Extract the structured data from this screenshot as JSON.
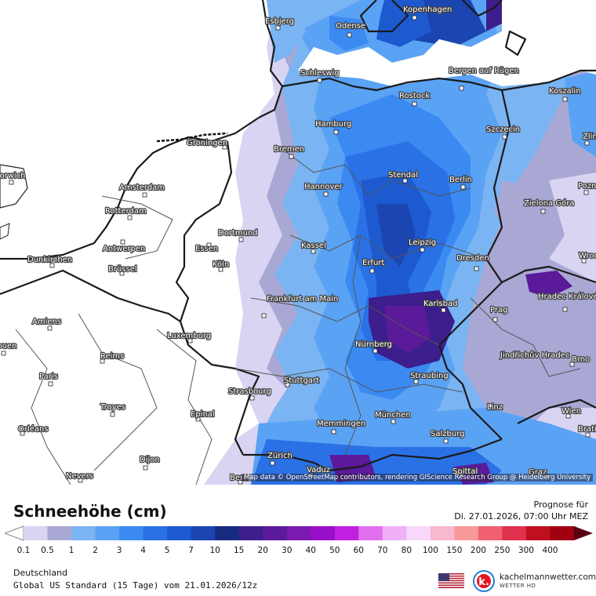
{
  "map": {
    "attribution": "Map data © OpenStreetMap contributors, rendering GIScience Research Group @ Heidelberg University",
    "cities": [
      {
        "name": "Esbjerg"
      },
      {
        "name": "Odense"
      },
      {
        "name": "Kopenhagen"
      },
      {
        "name": "Schleswig"
      },
      {
        "name": "Bergen auf Rügen"
      },
      {
        "name": "Rostock"
      },
      {
        "name": "Koszalin"
      },
      {
        "name": "Hamburg"
      },
      {
        "name": "Szczecin"
      },
      {
        "name": "Bremen"
      },
      {
        "name": "Groningen"
      },
      {
        "name": "Stendal"
      },
      {
        "name": "Berlin"
      },
      {
        "name": "Amsterdam"
      },
      {
        "name": "Hannover"
      },
      {
        "name": "Rotterdam"
      },
      {
        "name": "Zielona Góra"
      },
      {
        "name": "Dortmund"
      },
      {
        "name": "Essen"
      },
      {
        "name": "Antwerpen"
      },
      {
        "name": "Leipzig"
      },
      {
        "name": "Kassel"
      },
      {
        "name": "Dunkirchen"
      },
      {
        "name": "Köln"
      },
      {
        "name": "Brüssel"
      },
      {
        "name": "Erfurt"
      },
      {
        "name": "Dresden"
      },
      {
        "name": "Frankfurt am Main"
      },
      {
        "name": "Karlsbad"
      },
      {
        "name": "Hradec Králové"
      },
      {
        "name": "Prag"
      },
      {
        "name": "Amiens"
      },
      {
        "name": "Luxemburg"
      },
      {
        "name": "Nürnberg"
      },
      {
        "name": "Reims"
      },
      {
        "name": "Jindřichův Hradec"
      },
      {
        "name": "Brno"
      },
      {
        "name": "Paris"
      },
      {
        "name": "Stuttgart"
      },
      {
        "name": "Straubing"
      },
      {
        "name": "Strasbourg"
      },
      {
        "name": "Troyes"
      },
      {
        "name": "Epinal"
      },
      {
        "name": "München"
      },
      {
        "name": "Linz"
      },
      {
        "name": "Wien"
      },
      {
        "name": "Memmingen"
      },
      {
        "name": "Orléans"
      },
      {
        "name": "Salzburg"
      },
      {
        "name": "Dijon"
      },
      {
        "name": "Zürich"
      },
      {
        "name": "Vaduz"
      },
      {
        "name": "Nevers"
      },
      {
        "name": "Bern"
      },
      {
        "name": "Spittal"
      },
      {
        "name": "Graz"
      },
      {
        "name": "Norwich"
      },
      {
        "name": "Rouen"
      },
      {
        "name": "Poznań"
      },
      {
        "name": "Wrocław"
      },
      {
        "name": "Zlín"
      },
      {
        "name": "Bratislava"
      }
    ]
  },
  "legend": {
    "title": "Schneehöhe (cm)",
    "forecast_label": "Prognose für",
    "forecast_time": "Di. 27.01.2026, 07:00 Uhr MEZ",
    "region": "Deutschland",
    "model": "Global US Standard (15 Tage) vom  21.01.2026/12z",
    "ticks": [
      "0.1",
      "0.5",
      "1",
      "2",
      "3",
      "4",
      "5",
      "7",
      "10",
      "15",
      "20",
      "30",
      "40",
      "50",
      "60",
      "70",
      "80",
      "100",
      "150",
      "200",
      "250",
      "300",
      "400"
    ],
    "colors": [
      "#d8d4f2",
      "#a9a8d4",
      "#7ab4f2",
      "#5aa2f4",
      "#3b8af2",
      "#2a71e6",
      "#1d5ad0",
      "#1b45b0",
      "#172c80",
      "#3c1e8c",
      "#5a1a9a",
      "#7a1ab0",
      "#9a10c8",
      "#c020e0",
      "#e070f0",
      "#f0b0f8",
      "#f8d8fa",
      "#f8b8d0",
      "#f89898",
      "#f06070",
      "#e03050",
      "#c01020",
      "#a00010",
      "#800010",
      "#5a0010"
    ],
    "brand_name": "kachelmannwetter.com",
    "brand_sub": "WETTER HD"
  }
}
